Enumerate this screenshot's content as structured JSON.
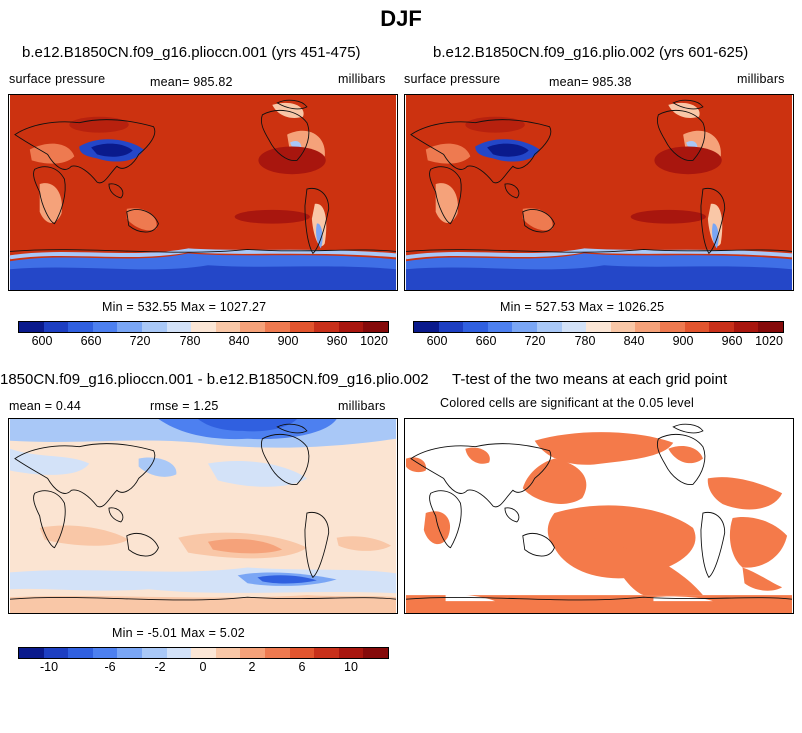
{
  "figure": {
    "title": "DJF",
    "panels": [
      {
        "run_title": "b.e12.B1850CN.f09_g16.plioccn.001 (yrs 451-475)",
        "variable": "surface pressure",
        "mean_text": "mean= 985.82",
        "units": "millibars",
        "minmax_text": "Min = 532.55 Max = 1027.27"
      },
      {
        "run_title": "b.e12.B1850CN.f09_g16.plio.002 (yrs 601-625)",
        "variable": "surface pressure",
        "mean_text": "mean= 985.38",
        "units": "millibars",
        "minmax_text": "Min = 527.53 Max = 1026.25"
      },
      {
        "run_title": "1850CN.f09_g16.plioccn.001 - b.e12.B1850CN.f09_g16.plio.002",
        "mean_text": "mean =    0.44",
        "rmse_text": "rmse =    1.25",
        "units": "millibars",
        "minmax_text": "Min =  -5.01 Max =   5.02"
      },
      {
        "run_title": "T-test of the two means at each grid point",
        "note": "Colored cells are significant at the 0.05 level"
      }
    ]
  },
  "chart_data": [
    {
      "type": "heatmap",
      "title": "b.e12.B1850CN.f09_g16.plioccn.001 (yrs 451-475)",
      "variable": "surface pressure",
      "units": "millibars",
      "mean": 985.82,
      "min": 532.55,
      "max": 1027.27,
      "colorbar_ticks": [
        "600",
        "660",
        "720",
        "780",
        "840",
        "900",
        "960",
        "1020"
      ],
      "colorbar_colors": [
        "#0a1a8c",
        "#1d3fc2",
        "#3060e0",
        "#4d80f0",
        "#7aa6f5",
        "#a9c8f7",
        "#d3e2f8",
        "#fbe6d6",
        "#f9c7a7",
        "#f5a27a",
        "#ee7a50",
        "#e2552e",
        "#c8301a",
        "#a8160e",
        "#850a0a"
      ]
    },
    {
      "type": "heatmap",
      "title": "b.e12.B1850CN.f09_g16.plio.002 (yrs 601-625)",
      "variable": "surface pressure",
      "units": "millibars",
      "mean": 985.38,
      "min": 527.53,
      "max": 1026.25,
      "colorbar_ticks": [
        "600",
        "660",
        "720",
        "780",
        "840",
        "900",
        "960",
        "1020"
      ],
      "colorbar_colors": [
        "#0a1a8c",
        "#1d3fc2",
        "#3060e0",
        "#4d80f0",
        "#7aa6f5",
        "#a9c8f7",
        "#d3e2f8",
        "#fbe6d6",
        "#f9c7a7",
        "#f5a27a",
        "#ee7a50",
        "#e2552e",
        "#c8301a",
        "#a8160e",
        "#850a0a"
      ]
    },
    {
      "type": "heatmap",
      "title": "1850CN.f09_g16.plioccn.001 - b.e12.B1850CN.f09_g16.plio.002",
      "units": "millibars",
      "mean": 0.44,
      "rmse": 1.25,
      "min": -5.01,
      "max": 5.02,
      "colorbar_ticks": [
        "-10",
        "-6",
        "-2",
        "0",
        "2",
        "6",
        "10"
      ],
      "colorbar_colors": [
        "#0a1a8c",
        "#1d3fc2",
        "#3060e0",
        "#4d80f0",
        "#7aa6f5",
        "#a9c8f7",
        "#d3e2f8",
        "#fbe6d6",
        "#f9c7a7",
        "#f5a27a",
        "#ee7a50",
        "#e2552e",
        "#c8301a",
        "#a8160e",
        "#850a0a"
      ]
    },
    {
      "type": "heatmap",
      "title": "T-test of the two means at each grid point",
      "note": "Colored cells are significant at the 0.05 level",
      "significant_color": "#f47a4a"
    }
  ],
  "colors": {
    "pressure_background": "#cc3210",
    "high_pressure": "#a8160e",
    "diff_background": "#fbe4d2",
    "significant": "#f47a4a",
    "coastline": "#111111"
  }
}
